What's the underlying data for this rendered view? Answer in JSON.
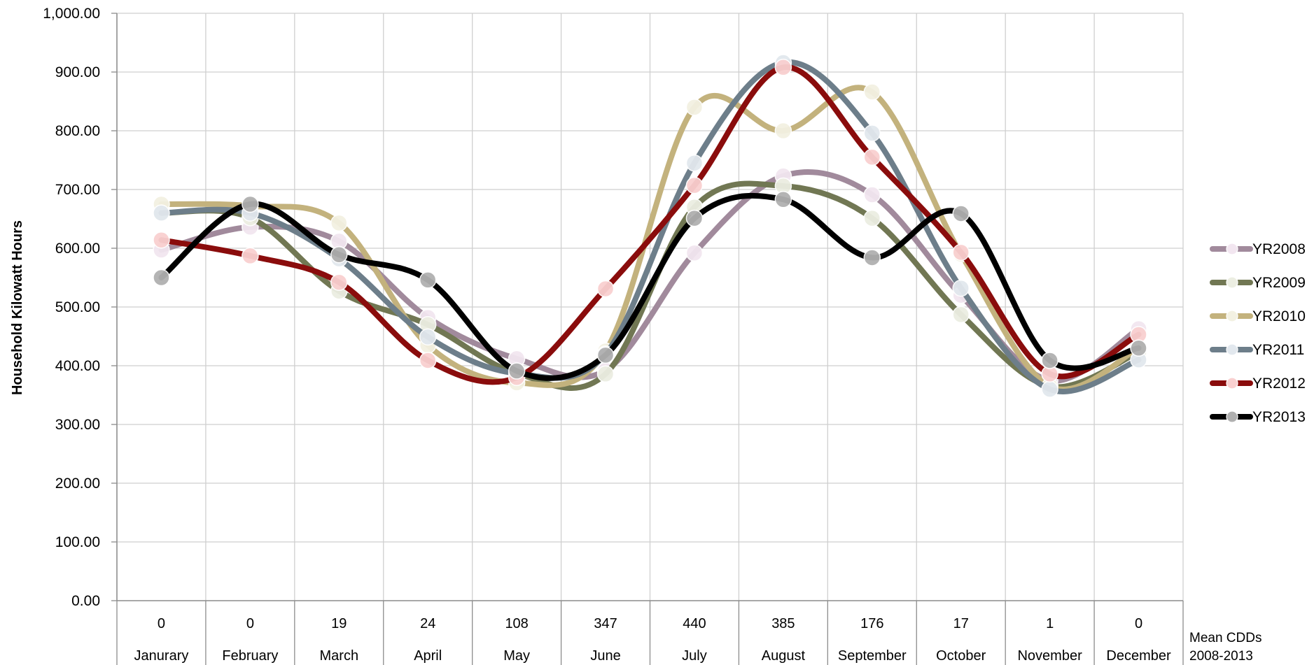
{
  "chart_data": {
    "type": "line",
    "ylabel": "Household Kilowatt Hours",
    "ylim": [
      0,
      1000
    ],
    "yticks": [
      "0.00",
      "100.00",
      "200.00",
      "300.00",
      "400.00",
      "500.00",
      "600.00",
      "700.00",
      "800.00",
      "900.00",
      "1,000.00"
    ],
    "categories": [
      "Janurary",
      "February",
      "March",
      "April",
      "May",
      "June",
      "July",
      "August",
      "September",
      "October",
      "November",
      "December"
    ],
    "cdd": [
      "0",
      "0",
      "19",
      "24",
      "108",
      "347",
      "440",
      "385",
      "176",
      "17",
      "1",
      "0"
    ],
    "cdd_title": [
      "Mean CDDs",
      "2008-2013"
    ],
    "grid": true,
    "legend_position": "right",
    "series": [
      {
        "name": "YR2008",
        "color": "#A18A9C",
        "marker_fill": "#F2E6F0",
        "values": [
          597,
          636,
          612,
          482,
          412,
          392,
          592,
          723,
          691,
          520,
          375,
          463
        ]
      },
      {
        "name": "YR2009",
        "color": "#717753",
        "marker_fill": "#ECEEE2",
        "values": [
          660,
          652,
          527,
          470,
          387,
          386,
          670,
          706,
          651,
          487,
          365,
          423
        ]
      },
      {
        "name": "YR2010",
        "color": "#C3B27D",
        "marker_fill": "#F3F1E2",
        "values": [
          675,
          672,
          643,
          435,
          371,
          425,
          840,
          800,
          866,
          590,
          365,
          430
        ]
      },
      {
        "name": "YR2011",
        "color": "#6D7E8A",
        "marker_fill": "#E2E8EE",
        "values": [
          660,
          660,
          582,
          449,
          387,
          420,
          745,
          916,
          796,
          532,
          360,
          410
        ]
      },
      {
        "name": "YR2012",
        "color": "#8A0C0C",
        "marker_fill": "#F9D0D0",
        "values": [
          614,
          587,
          542,
          409,
          380,
          531,
          707,
          908,
          755,
          593,
          386,
          453
        ]
      },
      {
        "name": "YR2013",
        "color": "#000000",
        "marker_fill": "#B0B0B0",
        "values": [
          550,
          675,
          589,
          546,
          391,
          418,
          651,
          683,
          584,
          659,
          409,
          430
        ]
      }
    ]
  }
}
